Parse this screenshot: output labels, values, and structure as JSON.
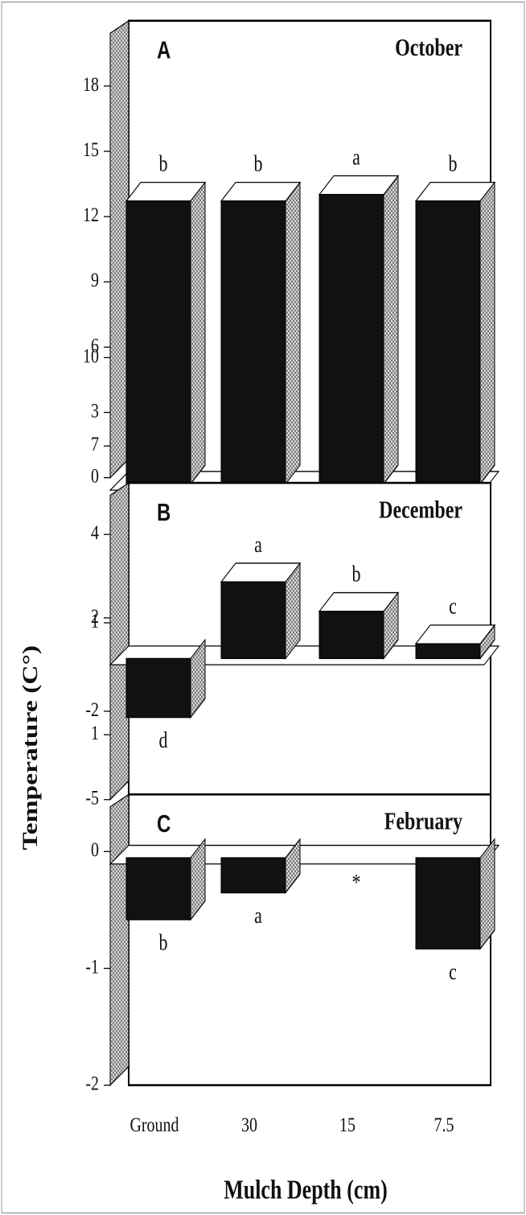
{
  "ylabel": "Temperature (C°)",
  "xlabel": "Mulch Depth (cm)",
  "categories": [
    "Ground",
    "30",
    "15",
    "7.5"
  ],
  "chart_data": [
    {
      "type": "bar",
      "panel": "A",
      "title": "October",
      "values": [
        13.0,
        13.0,
        13.3,
        13.0
      ],
      "letters": [
        "b",
        "b",
        "a",
        "b"
      ],
      "ylim": [
        0,
        21
      ],
      "yticks": [
        0,
        3,
        6,
        9,
        12,
        15,
        18
      ]
    },
    {
      "type": "bar",
      "panel": "B",
      "title": "December",
      "values": [
        -2.0,
        2.6,
        1.6,
        0.5
      ],
      "letters": [
        "d",
        "a",
        "b",
        "c"
      ],
      "ylim": [
        -5,
        11
      ],
      "yticks": [
        -5,
        -2,
        1,
        4,
        7,
        10
      ]
    },
    {
      "type": "bar",
      "panel": "C",
      "title": "February",
      "values": [
        -0.53,
        -0.3,
        null,
        -0.78
      ],
      "letters": [
        "b",
        "a",
        "*",
        "c"
      ],
      "ylim": [
        -2,
        2
      ],
      "yticks": [
        -2,
        -1,
        0,
        1,
        2
      ]
    }
  ]
}
